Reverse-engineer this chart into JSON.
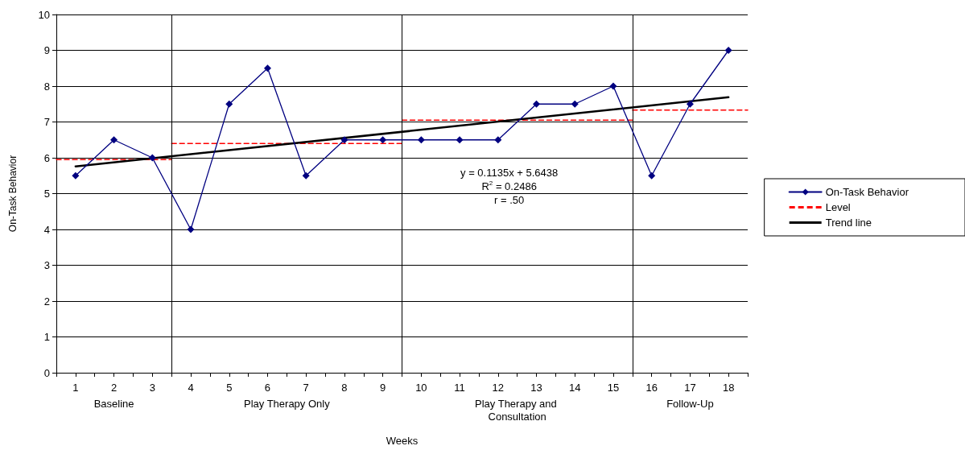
{
  "chart_data": {
    "type": "line",
    "xlabel": "Weeks",
    "ylabel": "On-Task Behavior",
    "x": [
      1,
      2,
      3,
      4,
      5,
      6,
      7,
      8,
      9,
      10,
      11,
      12,
      13,
      14,
      15,
      16,
      17,
      18
    ],
    "series": [
      {
        "name": "On-Task Behavior",
        "color": "#000080",
        "marker": "diamond",
        "line_style": "solid",
        "values": [
          5.5,
          6.5,
          6,
          4,
          7.5,
          8.5,
          5.5,
          6.5,
          6.5,
          6.5,
          6.5,
          6.5,
          7.5,
          7.5,
          8,
          5.5,
          7.5,
          9
        ]
      },
      {
        "name": "Level",
        "color": "#ff0000",
        "marker": "none",
        "line_style": "dashed",
        "x": [
          0.5,
          3.5
        ],
        "values": [
          5.95,
          5.95
        ]
      },
      {
        "color": "#ff0000",
        "marker": "none",
        "line_style": "dashed",
        "x": [
          3.5,
          9.5
        ],
        "values": [
          6.4,
          6.4
        ]
      },
      {
        "color": "#ff0000",
        "marker": "none",
        "line_style": "dashed",
        "x": [
          9.5,
          15.5
        ],
        "values": [
          7.05,
          7.05
        ]
      },
      {
        "color": "#ff0000",
        "marker": "none",
        "line_style": "dashed",
        "x": [
          15.5,
          18.5
        ],
        "values": [
          7.33,
          7.33
        ]
      },
      {
        "name": "Trend line",
        "color": "#000000",
        "marker": "none",
        "line_style": "solid",
        "x": [
          1,
          18
        ],
        "values": [
          5.76,
          7.69
        ]
      }
    ],
    "xlim": [
      0.5,
      18.5
    ],
    "xticks": [
      {
        "value": 0.5,
        "label": null
      },
      1,
      {
        "value": 1.5,
        "label": null
      },
      2,
      {
        "value": 2.5,
        "label": null
      },
      3,
      {
        "value": 3.5,
        "label": null
      },
      4,
      {
        "value": 4.5,
        "label": null
      },
      5,
      {
        "value": 5.5,
        "label": null
      },
      6,
      {
        "value": 6.5,
        "label": null
      },
      7,
      {
        "value": 7.5,
        "label": null
      },
      8,
      {
        "value": 8.5,
        "label": null
      },
      9,
      {
        "value": 9.5,
        "label": null
      },
      10,
      {
        "value": 10.5,
        "label": null
      },
      11,
      {
        "value": 11.5,
        "label": null
      },
      12,
      {
        "value": 12.5,
        "label": null
      },
      13,
      {
        "value": 13.5,
        "label": null
      },
      14,
      {
        "value": 14.5,
        "label": null
      },
      15,
      {
        "value": 15.5,
        "label": null
      },
      16,
      {
        "value": 16.5,
        "label": null
      },
      17,
      {
        "value": 17.5,
        "label": null
      },
      18,
      {
        "value": 18.5,
        "label": null
      }
    ],
    "ylim": [
      0,
      10
    ],
    "yticks": [
      0,
      1,
      2,
      3,
      4,
      5,
      6,
      7,
      8,
      9,
      10
    ],
    "grid": "y",
    "legend": "right",
    "ref_lines": [
      {
        "axis": "x",
        "value": 3.5,
        "color": "#000000"
      },
      {
        "axis": "x",
        "value": 9.5,
        "color": "#000000"
      },
      {
        "axis": "x",
        "value": 15.5,
        "color": "#000000"
      }
    ],
    "annotations": [
      "Baseline",
      "Play Therapy Only",
      "Play Therapy and Consultation",
      "Follow-Up",
      "y = 0.1135x + 5.6438",
      "R$^{2}$ = 0.2486",
      "r = .50"
    ]
  }
}
